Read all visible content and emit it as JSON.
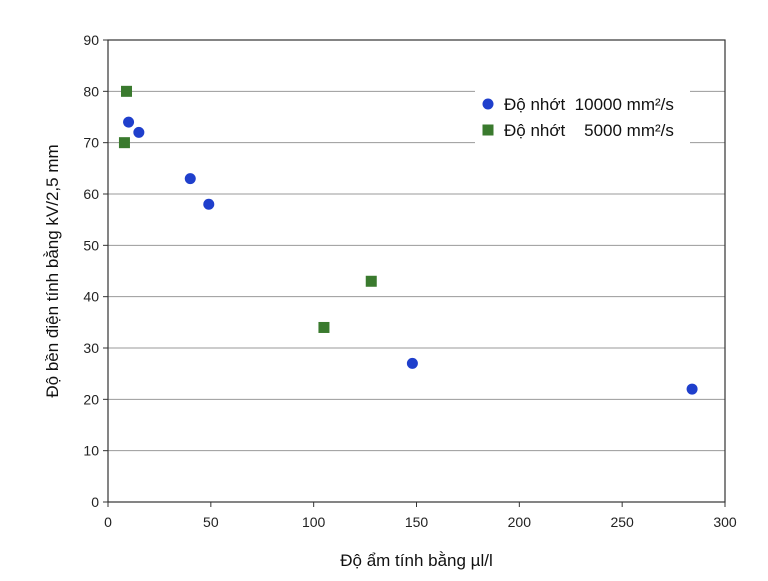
{
  "chart_data": {
    "type": "scatter",
    "xlabel": "Độ ẩm tính bằng µl/l",
    "ylabel": "Độ bền điện tính bằng kV/2,5 mm",
    "xlim": [
      0,
      300
    ],
    "ylim": [
      0,
      90
    ],
    "x_ticks": [
      0,
      50,
      100,
      150,
      200,
      250,
      300
    ],
    "y_ticks": [
      0,
      10,
      20,
      30,
      40,
      50,
      60,
      70,
      80,
      90
    ],
    "grid": "horizontal",
    "legend_position": "top-right",
    "series": [
      {
        "name": "Độ nhớt  10000 mm²/s",
        "marker": "circle",
        "color": "#1f3fcc",
        "points": [
          {
            "x": 10,
            "y": 74
          },
          {
            "x": 15,
            "y": 72
          },
          {
            "x": 40,
            "y": 63
          },
          {
            "x": 49,
            "y": 58
          },
          {
            "x": 148,
            "y": 27
          },
          {
            "x": 284,
            "y": 22
          }
        ]
      },
      {
        "name": "Độ nhớt    5000 mm²/s",
        "marker": "square",
        "color": "#3a7a2e",
        "points": [
          {
            "x": 9,
            "y": 80
          },
          {
            "x": 8,
            "y": 70
          },
          {
            "x": 105,
            "y": 34
          },
          {
            "x": 128,
            "y": 43
          }
        ]
      }
    ]
  }
}
